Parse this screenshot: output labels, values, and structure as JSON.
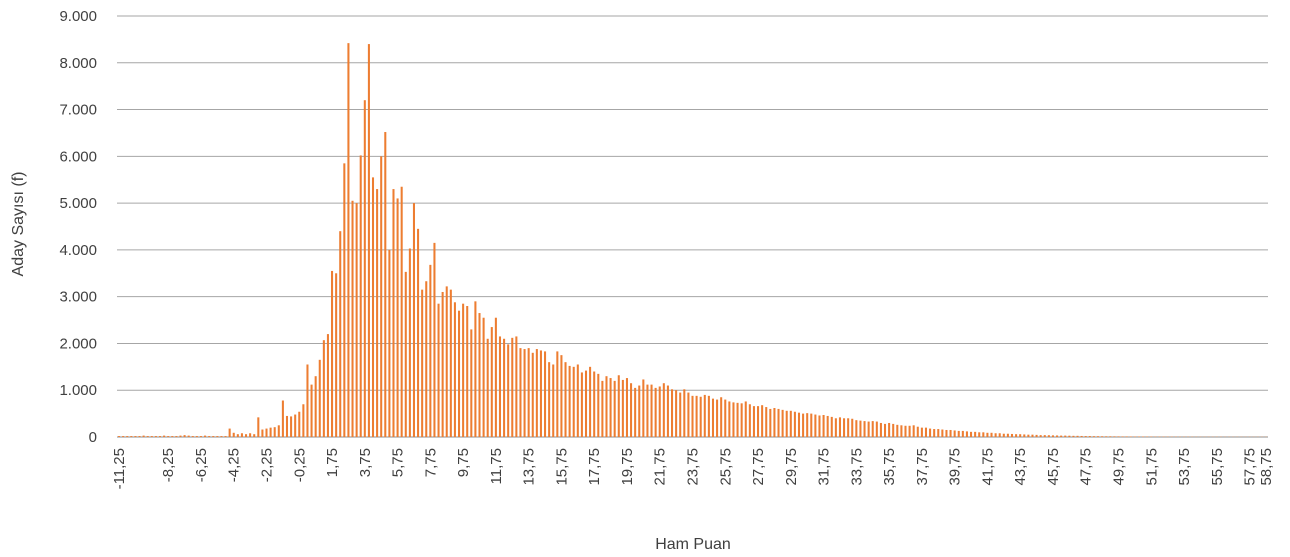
{
  "chart_data": {
    "type": "bar",
    "xlabel": "Ham Puan",
    "ylabel": "Aday Sayısı (f)",
    "ylim": [
      0,
      9000
    ],
    "y_ticks": [
      0,
      1000,
      2000,
      3000,
      4000,
      5000,
      6000,
      7000,
      8000,
      9000
    ],
    "y_tick_labels": [
      "0",
      "1.000",
      "2.000",
      "3.000",
      "4.000",
      "5.000",
      "6.000",
      "7.000",
      "8.000",
      "9.000"
    ],
    "x_range": [
      -11.25,
      58.75
    ],
    "x_step": 0.25,
    "x_tick_labels": [
      "-11,25",
      "-8,25",
      "-6,25",
      "-4,25",
      "-2,25",
      "-0,25",
      "1,75",
      "3,75",
      "5,75",
      "7,75",
      "9,75",
      "11,75",
      "13,75",
      "15,75",
      "17,75",
      "19,75",
      "21,75",
      "23,75",
      "25,75",
      "27,75",
      "29,75",
      "31,75",
      "33,75",
      "35,75",
      "37,75",
      "39,75",
      "41,75",
      "43,75",
      "45,75",
      "47,75",
      "49,75",
      "51,75",
      "53,75",
      "55,75",
      "57,75",
      "58,75"
    ],
    "grid": true,
    "bar_color": "#ED7D31",
    "grid_color": "#A6A6A6",
    "values": [
      20,
      20,
      20,
      20,
      20,
      20,
      30,
      20,
      20,
      20,
      20,
      30,
      20,
      20,
      20,
      30,
      40,
      30,
      20,
      20,
      20,
      30,
      20,
      20,
      20,
      20,
      20,
      180,
      90,
      60,
      80,
      60,
      80,
      60,
      420,
      160,
      180,
      200,
      210,
      250,
      780,
      450,
      440,
      480,
      540,
      700,
      1550,
      1120,
      1300,
      1650,
      2070,
      2200,
      3550,
      3500,
      4400,
      5850,
      8420,
      5050,
      5000,
      6020,
      7200,
      8400,
      5550,
      5300,
      6000,
      6520,
      4000,
      5300,
      5100,
      5350,
      3530,
      4030,
      5000,
      4450,
      3150,
      3330,
      3680,
      4150,
      2850,
      3100,
      3220,
      3150,
      2880,
      2700,
      2850,
      2800,
      2300,
      2900,
      2650,
      2550,
      2100,
      2350,
      2550,
      2150,
      2100,
      1980,
      2120,
      2150,
      1900,
      1880,
      1900,
      1800,
      1880,
      1850,
      1830,
      1600,
      1550,
      1830,
      1750,
      1600,
      1520,
      1500,
      1550,
      1380,
      1420,
      1500,
      1400,
      1350,
      1200,
      1300,
      1260,
      1200,
      1320,
      1220,
      1260,
      1150,
      1050,
      1100,
      1230,
      1120,
      1120,
      1050,
      1080,
      1150,
      1100,
      1020,
      1000,
      950,
      1020,
      950,
      880,
      880,
      860,
      900,
      880,
      820,
      800,
      850,
      800,
      760,
      740,
      730,
      720,
      760,
      700,
      660,
      660,
      680,
      640,
      600,
      620,
      600,
      580,
      560,
      560,
      540,
      520,
      500,
      510,
      500,
      480,
      460,
      470,
      450,
      430,
      400,
      420,
      400,
      400,
      390,
      360,
      350,
      340,
      330,
      340,
      330,
      300,
      280,
      300,
      280,
      260,
      250,
      240,
      240,
      250,
      220,
      200,
      200,
      180,
      170,
      170,
      160,
      150,
      150,
      140,
      130,
      130,
      120,
      110,
      110,
      100,
      100,
      90,
      90,
      80,
      80,
      70,
      70,
      65,
      60,
      60,
      55,
      50,
      50,
      45,
      40,
      40,
      38,
      35,
      33,
      30,
      30,
      28,
      25,
      25,
      22,
      20,
      20,
      18,
      17,
      16,
      15,
      15,
      14,
      13,
      12,
      12,
      11,
      10,
      10,
      10,
      9,
      9,
      8,
      8,
      8,
      7,
      7,
      7,
      6,
      6,
      6,
      6,
      5,
      5,
      5,
      5,
      5,
      5,
      5,
      4,
      4,
      4,
      4,
      4,
      4,
      4,
      4,
      4,
      4,
      4,
      4,
      4,
      4,
      4,
      4,
      4,
      4,
      4,
      4,
      4,
      4,
      4,
      4
    ]
  }
}
